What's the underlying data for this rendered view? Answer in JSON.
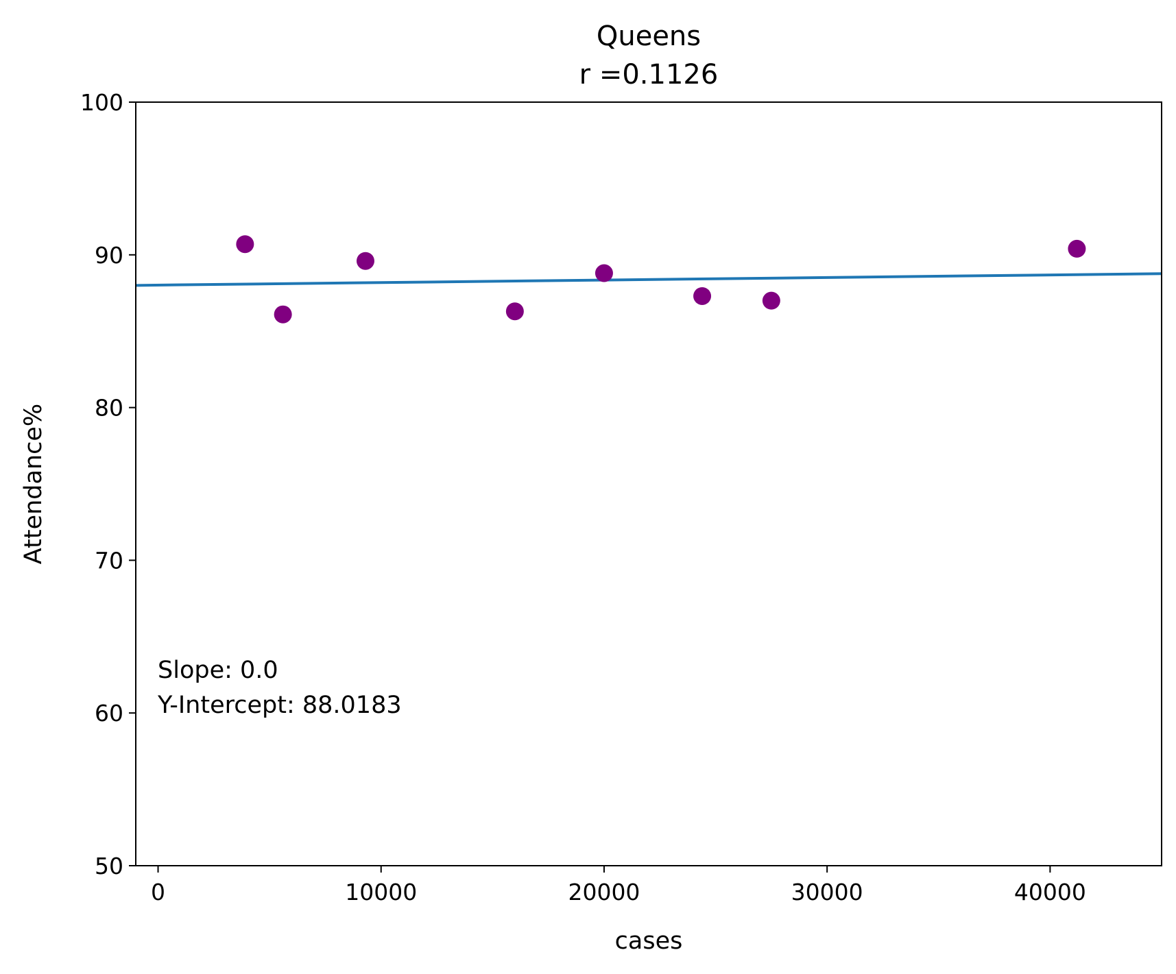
{
  "chart_data": {
    "type": "scatter",
    "title": "Queens",
    "subtitle": "r =0.1126",
    "xlabel": "cases",
    "ylabel": "Attendance%",
    "xlim": [
      -1000,
      45000
    ],
    "ylim": [
      50,
      100
    ],
    "xticks": [
      0,
      10000,
      20000,
      30000,
      40000
    ],
    "xtick_labels": [
      "0",
      "10000",
      "20000",
      "30000",
      "40000"
    ],
    "yticks": [
      50,
      60,
      70,
      80,
      90,
      100
    ],
    "ytick_labels": [
      "50",
      "60",
      "70",
      "80",
      "90",
      "100"
    ],
    "grid": false,
    "points": [
      {
        "x": 3900,
        "y": 90.7
      },
      {
        "x": 5600,
        "y": 86.1
      },
      {
        "x": 9300,
        "y": 89.6
      },
      {
        "x": 16000,
        "y": 86.3
      },
      {
        "x": 20000,
        "y": 88.8
      },
      {
        "x": 24400,
        "y": 87.3
      },
      {
        "x": 27500,
        "y": 87.0
      },
      {
        "x": 41200,
        "y": 90.4
      }
    ],
    "regression": {
      "slope": 1.66e-05,
      "intercept": 88.0183
    },
    "annotation": [
      "Slope: 0.0",
      "Y-Intercept: 88.0183"
    ],
    "point_color": "#800080",
    "line_color": "#1f77b4"
  }
}
